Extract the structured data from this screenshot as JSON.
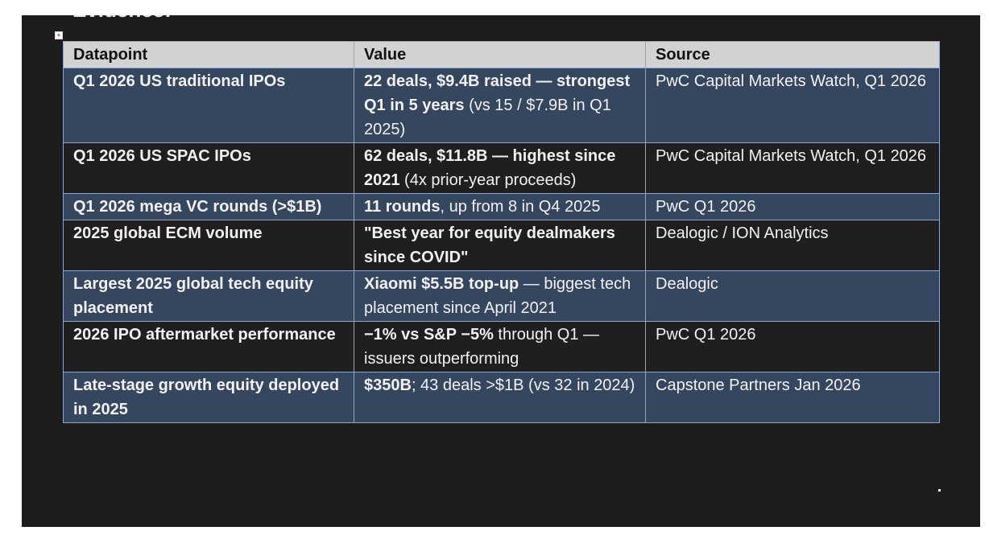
{
  "document": {
    "cut_heading": "Evidence:"
  },
  "table": {
    "headers": [
      "Datapoint",
      "Value",
      "Source"
    ],
    "rows": [
      {
        "datapoint": "Q1 2026 US traditional IPOs",
        "value_bold": "22 deals, $9.4B raised — strongest Q1 in 5 years",
        "value_rest": " (vs 15 / $7.9B in Q1 2025)",
        "source": "PwC Capital Markets Watch, Q1 2026"
      },
      {
        "datapoint": "Q1 2026 US SPAC IPOs",
        "value_bold": "62 deals, $11.8B — highest since 2021",
        "value_rest": " (4x prior-year proceeds)",
        "source": "PwC Capital Markets Watch, Q1 2026"
      },
      {
        "datapoint": "Q1 2026 mega VC rounds (>$1B)",
        "value_bold": "11 rounds",
        "value_rest": ", up from 8 in Q4 2025",
        "source": "PwC Q1 2026"
      },
      {
        "datapoint": "2025 global ECM volume",
        "value_bold": "\"Best year for equity dealmakers since COVID\"",
        "value_rest": "",
        "source": "Dealogic / ION Analytics"
      },
      {
        "datapoint": "Largest 2025 global tech equity placement",
        "value_bold": "Xiaomi $5.5B top-up",
        "value_rest": " — biggest tech placement since April 2021",
        "source": "Dealogic"
      },
      {
        "datapoint": "2026 IPO aftermarket performance",
        "value_bold": "−1% vs S&P −5%",
        "value_rest": " through Q1 — issuers outperforming",
        "source": "PwC Q1 2026"
      },
      {
        "datapoint": "Late-stage growth equity deployed in 2025",
        "value_bold": "$350B",
        "value_rest": "; 43 deals >$1B (vs 32 in 2024)",
        "source": "Capstone Partners Jan 2026"
      }
    ]
  }
}
